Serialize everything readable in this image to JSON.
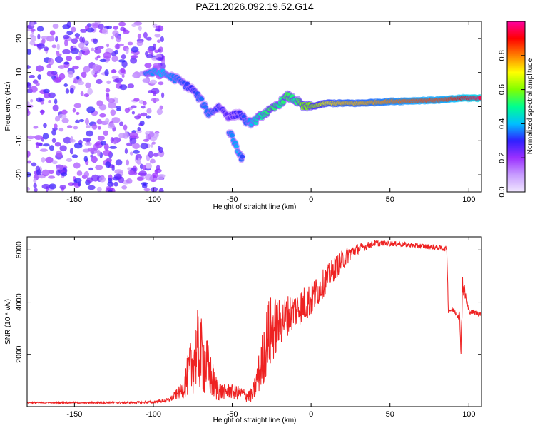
{
  "chart_data": [
    {
      "type": "heatmap",
      "title": "PAZ1.2026.092.19.52.G14",
      "xlabel": "Height of straight line (km)",
      "ylabel": "Frequency (Hz)",
      "xlim": [
        -180,
        108
      ],
      "ylim": [
        -25,
        25
      ],
      "xticks": [
        -150,
        -100,
        -50,
        0,
        50,
        100
      ],
      "yticks": [
        -20,
        -10,
        0,
        10,
        20
      ],
      "colorbar": {
        "label": "Normalized spectral amplitude",
        "range": [
          0,
          1
        ],
        "ticks": [
          0.0,
          0.2,
          0.4,
          0.6,
          0.8
        ],
        "colors": [
          "#f0e6ff",
          "#c79cff",
          "#9b30ff",
          "#3020ff",
          "#00c0ff",
          "#00ff90",
          "#80ff00",
          "#ffff00",
          "#ff8000",
          "#ff0000",
          "#ff00a0"
        ]
      },
      "ridge": [
        {
          "x": -105,
          "f": 10,
          "a": 0.35
        },
        {
          "x": -95,
          "f": 10,
          "a": 0.4
        },
        {
          "x": -85,
          "f": 8,
          "a": 0.35
        },
        {
          "x": -75,
          "f": 5,
          "a": 0.3
        },
        {
          "x": -70,
          "f": 2,
          "a": 0.35
        },
        {
          "x": -65,
          "f": -2,
          "a": 0.35
        },
        {
          "x": -58,
          "f": 0,
          "a": 0.3
        },
        {
          "x": -52,
          "f": -3,
          "a": 0.25
        },
        {
          "x": -45,
          "f": -2,
          "a": 0.3
        },
        {
          "x": -40,
          "f": -5,
          "a": 0.35
        },
        {
          "x": -35,
          "f": -4,
          "a": 0.45
        },
        {
          "x": -30,
          "f": -2,
          "a": 0.5
        },
        {
          "x": -25,
          "f": -1,
          "a": 0.55
        },
        {
          "x": -20,
          "f": 1,
          "a": 0.5
        },
        {
          "x": -15,
          "f": 3,
          "a": 0.55
        },
        {
          "x": -10,
          "f": 2,
          "a": 0.5
        },
        {
          "x": -5,
          "f": 0,
          "a": 0.6
        },
        {
          "x": 0,
          "f": 0,
          "a": 0.6
        },
        {
          "x": 10,
          "f": 1,
          "a": 0.7
        },
        {
          "x": 20,
          "f": 1,
          "a": 0.75
        },
        {
          "x": 30,
          "f": 1,
          "a": 0.75
        },
        {
          "x": 50,
          "f": 1.5,
          "a": 0.8
        },
        {
          "x": 70,
          "f": 1.8,
          "a": 0.85
        },
        {
          "x": 85,
          "f": 2,
          "a": 0.85
        },
        {
          "x": 95,
          "f": 2.5,
          "a": 0.9
        },
        {
          "x": 108,
          "f": 2.5,
          "a": 0.95
        }
      ],
      "branch": [
        {
          "x": -52,
          "f": -7,
          "a": 0.35
        },
        {
          "x": -46,
          "f": -13,
          "a": 0.4
        },
        {
          "x": -43,
          "f": -16,
          "a": 0.3
        }
      ]
    },
    {
      "type": "line",
      "xlabel": "Height of straight line (km)",
      "ylabel": "SNR (10 * v/v)",
      "xlim": [
        -180,
        108
      ],
      "ylim": [
        0,
        6500
      ],
      "xticks": [
        -150,
        -100,
        -50,
        0,
        50,
        100
      ],
      "yticks": [
        2000,
        4000,
        6000
      ],
      "series": [
        {
          "name": "SNR",
          "color": "#ee2222",
          "x": [
            -180,
            -150,
            -120,
            -100,
            -90,
            -82,
            -76,
            -72,
            -68,
            -64,
            -60,
            -56,
            -52,
            -48,
            -44,
            -40,
            -37,
            -33,
            -30,
            -27,
            -24,
            -20,
            -15,
            -10,
            -5,
            0,
            5,
            10,
            15,
            20,
            25,
            30,
            35,
            40,
            50,
            60,
            70,
            80,
            84,
            86,
            87,
            90,
            94,
            95,
            96,
            100,
            108
          ],
          "y": [
            150,
            150,
            150,
            170,
            250,
            600,
            1500,
            2200,
            1800,
            1200,
            700,
            550,
            600,
            550,
            500,
            400,
            450,
            1300,
            2000,
            2700,
            3000,
            3200,
            3500,
            3700,
            3900,
            4100,
            4500,
            4900,
            5300,
            5600,
            5900,
            6050,
            6150,
            6250,
            6250,
            6200,
            6150,
            6100,
            6050,
            6050,
            3700,
            3700,
            3500,
            2300,
            4700,
            3650,
            3550
          ],
          "noise": [
            30,
            30,
            40,
            50,
            80,
            300,
            1100,
            1500,
            1400,
            900,
            500,
            300,
            300,
            300,
            250,
            250,
            300,
            800,
            1200,
            1500,
            1300,
            900,
            800,
            700,
            700,
            700,
            600,
            500,
            450,
            400,
            300,
            200,
            150,
            120,
            100,
            100,
            100,
            100,
            100,
            100,
            120,
            120,
            200,
            400,
            400,
            100,
            100
          ]
        }
      ]
    }
  ]
}
